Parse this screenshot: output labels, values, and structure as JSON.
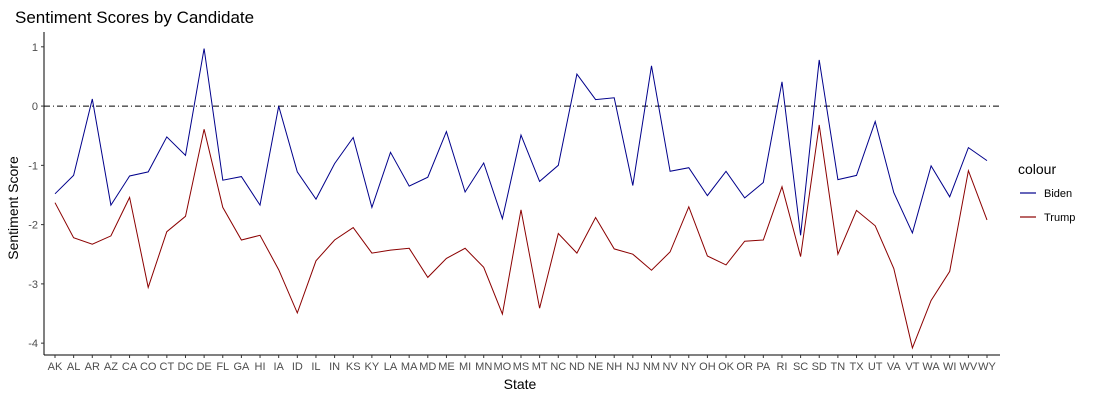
{
  "chart_data": {
    "type": "line",
    "title": "Sentiment Scores by Candidate",
    "xlabel": "State",
    "ylabel": "Sentiment Score",
    "ylim": [
      -4.2,
      1.25
    ],
    "yticks": [
      1,
      0,
      -1,
      -2,
      -3,
      -4
    ],
    "reference_line": {
      "y": 0,
      "style": "dot-dash"
    },
    "grid": false,
    "legend": {
      "title": "colour",
      "position": "right"
    },
    "categories": [
      "AK",
      "AL",
      "AR",
      "AZ",
      "CA",
      "CO",
      "CT",
      "DC",
      "DE",
      "FL",
      "GA",
      "HI",
      "IA",
      "ID",
      "IL",
      "IN",
      "KS",
      "KY",
      "LA",
      "MA",
      "MD",
      "ME",
      "MI",
      "MN",
      "MO",
      "MS",
      "MT",
      "NC",
      "ND",
      "NE",
      "NH",
      "NJ",
      "NM",
      "NV",
      "NY",
      "OH",
      "OK",
      "OR",
      "PA",
      "RI",
      "SC",
      "SD",
      "TN",
      "TX",
      "UT",
      "VA",
      "VT",
      "WA",
      "WI",
      "WV",
      "WY"
    ],
    "series": [
      {
        "name": "Biden",
        "color": "#00008B",
        "values": [
          -1.48,
          -1.17,
          0.12,
          -1.67,
          -1.18,
          -1.11,
          -0.52,
          -0.83,
          0.97,
          -1.25,
          -1.19,
          -1.67,
          0.0,
          -1.11,
          -1.57,
          -0.97,
          -0.53,
          -1.71,
          -0.78,
          -1.35,
          -1.2,
          -0.43,
          -1.45,
          -0.96,
          -1.9,
          -0.49,
          -1.27,
          -1.0,
          0.54,
          0.11,
          0.14,
          -1.34,
          0.68,
          -1.1,
          -1.04,
          -1.51,
          -1.1,
          -1.55,
          -1.29,
          0.41,
          -2.18,
          0.78,
          -1.24,
          -1.17,
          -0.26,
          -1.46,
          -2.14,
          -1.01,
          -1.53,
          -0.7,
          -0.92
        ]
      },
      {
        "name": "Trump",
        "color": "#8B0000",
        "values": [
          -1.63,
          -2.22,
          -2.33,
          -2.19,
          -1.54,
          -3.06,
          -2.12,
          -1.86,
          -0.39,
          -1.71,
          -2.26,
          -2.18,
          -2.76,
          -3.49,
          -2.61,
          -2.26,
          -2.05,
          -2.48,
          -2.43,
          -2.4,
          -2.89,
          -2.57,
          -2.4,
          -2.72,
          -3.51,
          -1.75,
          -3.41,
          -2.15,
          -2.48,
          -1.88,
          -2.41,
          -2.5,
          -2.77,
          -2.46,
          -1.7,
          -2.53,
          -2.68,
          -2.28,
          -2.26,
          -1.36,
          -2.54,
          -0.32,
          -2.5,
          -1.76,
          -2.02,
          -2.74,
          -4.08,
          -3.28,
          -2.79,
          -1.09,
          -1.92
        ]
      }
    ]
  }
}
